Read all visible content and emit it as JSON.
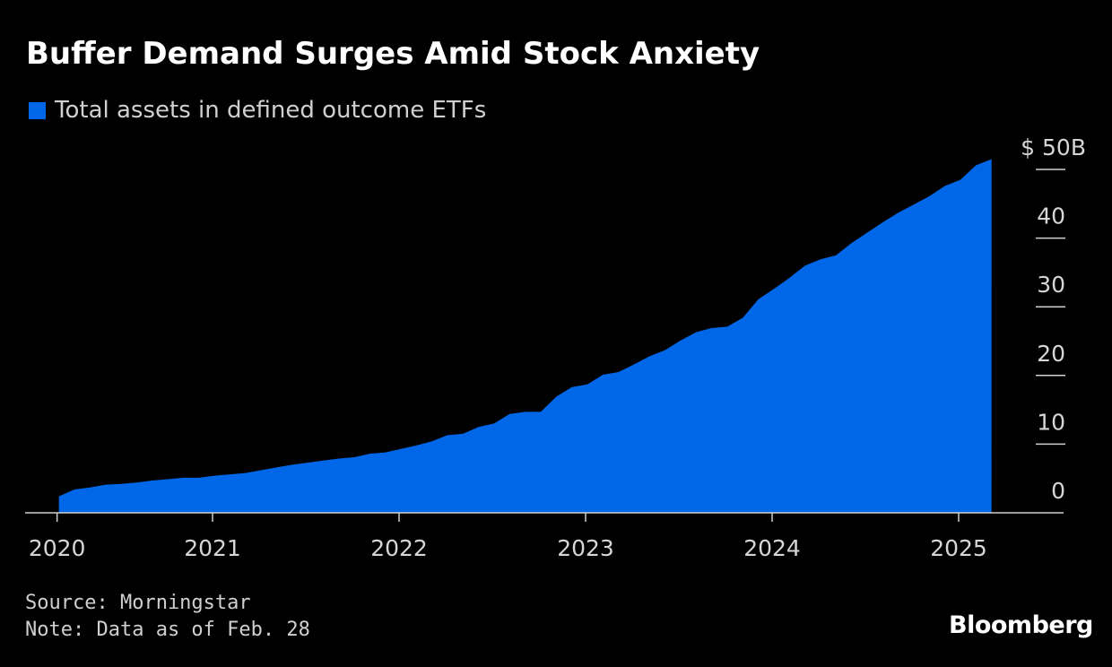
{
  "colors": {
    "area": "#0068E8",
    "background": "#000000",
    "axis": "#cfcfcf",
    "text": "#d6d6d6"
  },
  "footer": {
    "source": "Source: Morningstar",
    "note": "Note: Data as of Feb. 28",
    "logo": "Bloomberg"
  },
  "chart_data": {
    "type": "area",
    "title": "Buffer Demand Surges Amid Stock Anxiety",
    "legend": [
      {
        "name": "Total assets in defined outcome ETFs",
        "color": "#0068E8"
      }
    ],
    "legend_placement": "top-left",
    "ylabel": "",
    "y_unit_prefix": "$",
    "y_unit_suffix": "B",
    "ylim": [
      0,
      50
    ],
    "yticks": [
      0,
      10,
      20,
      30,
      40,
      50
    ],
    "ytick_labels": [
      "0",
      "10",
      "20",
      "30",
      "40",
      "$ 50B"
    ],
    "y_axis_side": "right",
    "xticks": [
      "2020",
      "2021",
      "2022",
      "2023",
      "2024",
      "2025"
    ],
    "grid": false,
    "series": [
      {
        "name": "Total assets in defined outcome ETFs",
        "x": [
          "2020-02",
          "2020-03",
          "2020-04",
          "2020-05",
          "2020-06",
          "2020-07",
          "2020-08",
          "2020-09",
          "2020-10",
          "2020-11",
          "2020-12",
          "2021-01",
          "2021-02",
          "2021-03",
          "2021-04",
          "2021-05",
          "2021-06",
          "2021-07",
          "2021-08",
          "2021-09",
          "2021-10",
          "2021-11",
          "2021-12",
          "2022-01",
          "2022-02",
          "2022-03",
          "2022-04",
          "2022-05",
          "2022-06",
          "2022-07",
          "2022-08",
          "2022-09",
          "2022-10",
          "2022-11",
          "2022-12",
          "2023-01",
          "2023-02",
          "2023-03",
          "2023-04",
          "2023-05",
          "2023-06",
          "2023-07",
          "2023-08",
          "2023-09",
          "2023-10",
          "2023-11",
          "2023-12",
          "2024-01",
          "2024-02",
          "2024-03",
          "2024-04",
          "2024-05",
          "2024-06",
          "2024-07",
          "2024-08",
          "2024-09",
          "2024-10",
          "2024-11",
          "2024-12",
          "2025-01",
          "2025-02"
        ],
        "values": [
          2.4,
          3.4,
          3.7,
          4.1,
          4.2,
          4.4,
          4.7,
          4.9,
          5.1,
          5.1,
          5.4,
          5.6,
          5.8,
          6.2,
          6.6,
          7.0,
          7.3,
          7.6,
          7.9,
          8.1,
          8.6,
          8.8,
          9.3,
          9.8,
          10.4,
          11.3,
          11.5,
          12.5,
          13.0,
          14.4,
          14.7,
          14.7,
          16.9,
          18.3,
          18.7,
          20.1,
          20.5,
          21.6,
          22.8,
          23.7,
          25.1,
          26.3,
          26.9,
          27.1,
          28.4,
          31.1,
          32.6,
          34.2,
          36.0,
          36.9,
          37.5,
          39.3,
          40.8,
          42.3,
          43.7,
          44.9,
          46.1,
          47.6,
          48.5,
          50.6,
          51.5
        ]
      }
    ]
  }
}
